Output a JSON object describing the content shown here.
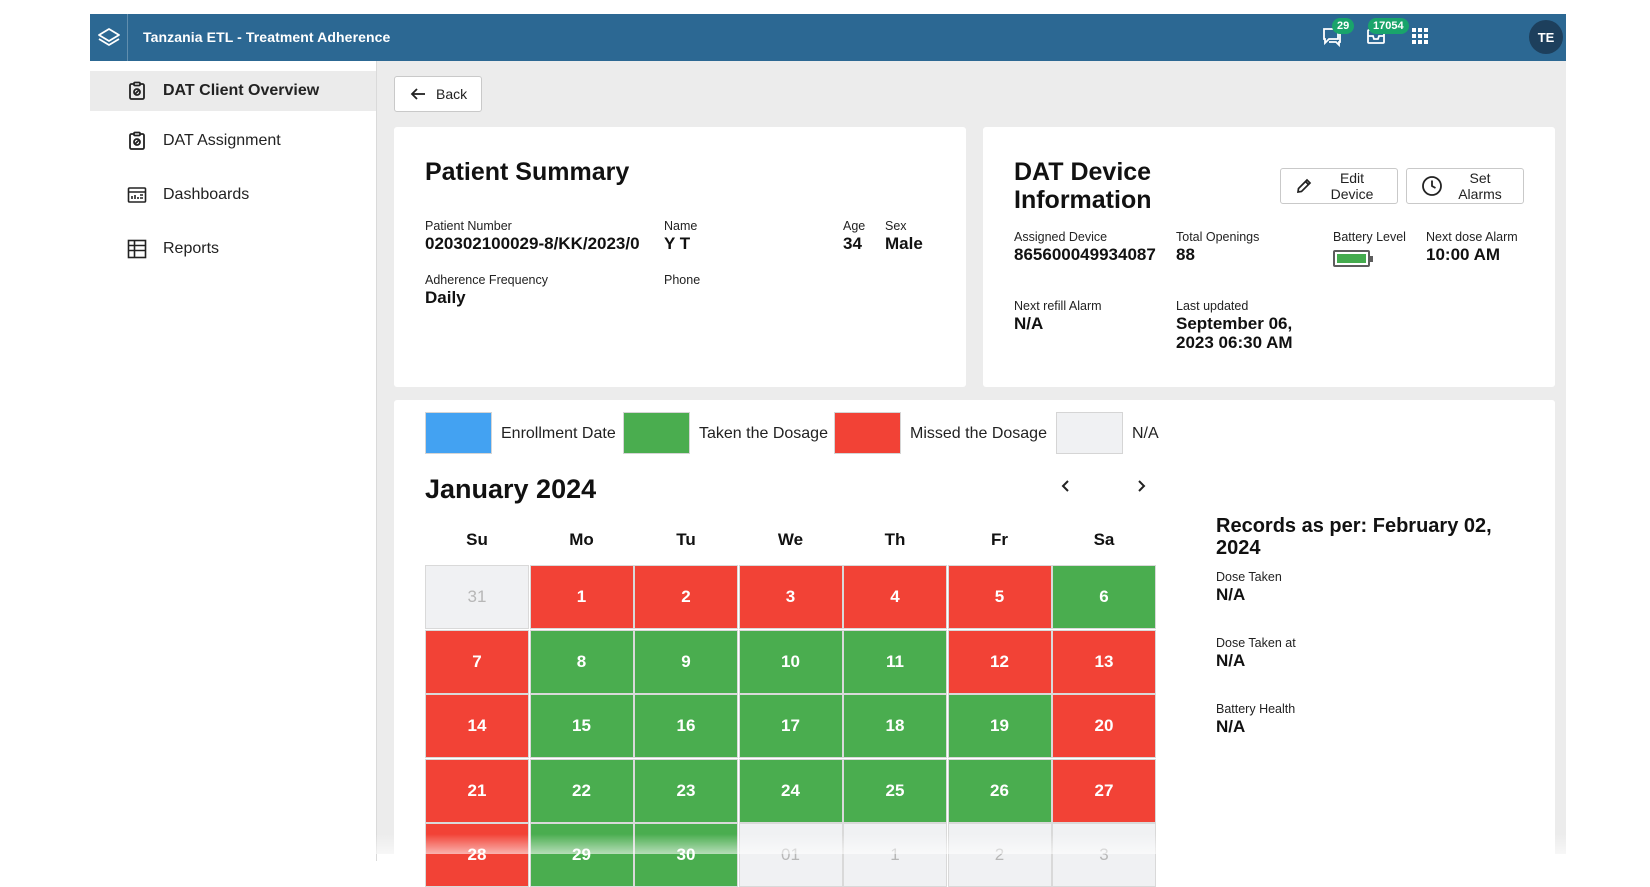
{
  "header": {
    "title": "Tanzania ETL - Treatment Adherence",
    "messages_count": "29",
    "inbox_count": "17054",
    "avatar_initials": "TE",
    "brand_color": "#2c6893"
  },
  "sidebar": {
    "items": [
      {
        "label": "DAT Client Overview",
        "icon": "clipboard-icon",
        "active": true
      },
      {
        "label": "DAT Assignment",
        "icon": "clipboard-icon"
      },
      {
        "label": "Dashboards",
        "icon": "dashboard-icon"
      },
      {
        "label": "Reports",
        "icon": "table-icon"
      }
    ]
  },
  "back_label": "Back",
  "patient": {
    "title": "Patient Summary",
    "number_label": "Patient Number",
    "number": "020302100029-8/KK/2023/0",
    "name_label": "Name",
    "name": "Y T",
    "age_label": "Age",
    "age": "34",
    "sex_label": "Sex",
    "sex": "Male",
    "frequency_label": "Adherence Frequency",
    "frequency": "Daily",
    "phone_label": "Phone",
    "phone": ""
  },
  "device": {
    "title_line1": "DAT Device",
    "title_line2": "Information",
    "edit_line1": "Edit",
    "edit_line2": "Device",
    "alarm_line1": "Set",
    "alarm_line2": "Alarms",
    "assigned_label": "Assigned Device",
    "assigned": "865600049934087",
    "openings_label": "Total Openings",
    "openings": "88",
    "battery_label": "Battery Level",
    "battery_level": 1.0,
    "next_dose_label": "Next dose Alarm",
    "next_dose": "10:00 AM",
    "refill_label": "Next refill Alarm",
    "refill": "N/A",
    "updated_label": "Last updated",
    "updated_line1": "September 06,",
    "updated_line2": "2023 06:30 AM"
  },
  "legend": [
    {
      "label": "Enrollment Date",
      "color": "#43a2f2"
    },
    {
      "label": "Taken the Dosage",
      "color": "#4aad4f"
    },
    {
      "label": "Missed the Dosage",
      "color": "#f24236"
    },
    {
      "label": "N/A",
      "color": "#f0f1f3"
    }
  ],
  "calendar": {
    "month": "January 2024",
    "weekdays": [
      "Su",
      "Mo",
      "Tu",
      "We",
      "Th",
      "Fr",
      "Sa"
    ],
    "days": [
      {
        "d": "31",
        "s": "na"
      },
      {
        "d": "1",
        "s": "miss"
      },
      {
        "d": "2",
        "s": "miss"
      },
      {
        "d": "3",
        "s": "miss"
      },
      {
        "d": "4",
        "s": "miss"
      },
      {
        "d": "5",
        "s": "miss"
      },
      {
        "d": "6",
        "s": "taken"
      },
      {
        "d": "7",
        "s": "miss"
      },
      {
        "d": "8",
        "s": "taken"
      },
      {
        "d": "9",
        "s": "taken"
      },
      {
        "d": "10",
        "s": "taken"
      },
      {
        "d": "11",
        "s": "taken"
      },
      {
        "d": "12",
        "s": "miss"
      },
      {
        "d": "13",
        "s": "miss"
      },
      {
        "d": "14",
        "s": "miss"
      },
      {
        "d": "15",
        "s": "taken"
      },
      {
        "d": "16",
        "s": "taken"
      },
      {
        "d": "17",
        "s": "taken"
      },
      {
        "d": "18",
        "s": "taken"
      },
      {
        "d": "19",
        "s": "taken"
      },
      {
        "d": "20",
        "s": "miss"
      },
      {
        "d": "21",
        "s": "miss"
      },
      {
        "d": "22",
        "s": "taken"
      },
      {
        "d": "23",
        "s": "taken"
      },
      {
        "d": "24",
        "s": "taken"
      },
      {
        "d": "25",
        "s": "taken"
      },
      {
        "d": "26",
        "s": "taken"
      },
      {
        "d": "27",
        "s": "miss"
      },
      {
        "d": "28",
        "s": "miss"
      },
      {
        "d": "29",
        "s": "taken"
      },
      {
        "d": "30",
        "s": "taken"
      },
      {
        "d": "01",
        "s": "na"
      },
      {
        "d": "1",
        "s": "na"
      },
      {
        "d": "2",
        "s": "na"
      },
      {
        "d": "3",
        "s": "na"
      }
    ]
  },
  "records": {
    "title": "Records as per: February 02, 2024",
    "items": [
      {
        "label": "Dose Taken",
        "value": "N/A"
      },
      {
        "label": "Dose Taken at",
        "value": "N/A"
      },
      {
        "label": "Battery Health",
        "value": "N/A"
      }
    ]
  }
}
